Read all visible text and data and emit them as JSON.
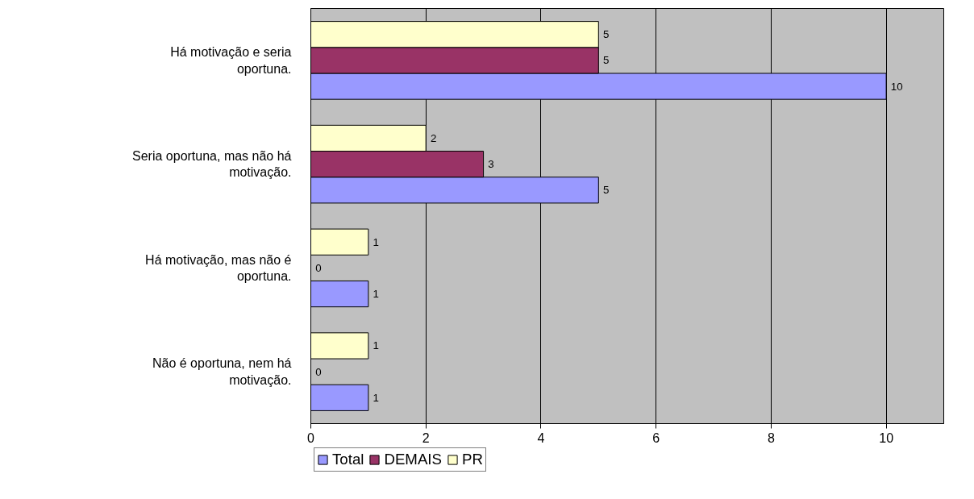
{
  "chart_data": {
    "type": "bar",
    "orientation": "horizontal",
    "categories": [
      "Há motivação e seria oportuna.",
      "Seria oportuna, mas não há motivação.",
      "Há motivação, mas não é oportuna.",
      "Não é oportuna, nem há motivação."
    ],
    "series": [
      {
        "name": "Total",
        "color": "#9999ff",
        "values": [
          10,
          5,
          1,
          1
        ]
      },
      {
        "name": "DEMAIS",
        "color": "#993366",
        "values": [
          5,
          3,
          0,
          0
        ]
      },
      {
        "name": "PR",
        "color": "#ffffcc",
        "values": [
          5,
          2,
          1,
          1
        ]
      }
    ],
    "xlim": [
      0,
      11
    ],
    "xticks": [
      0,
      2,
      4,
      6,
      8,
      10
    ],
    "grid": "x",
    "legend": "bottom left",
    "data_labels": true
  }
}
